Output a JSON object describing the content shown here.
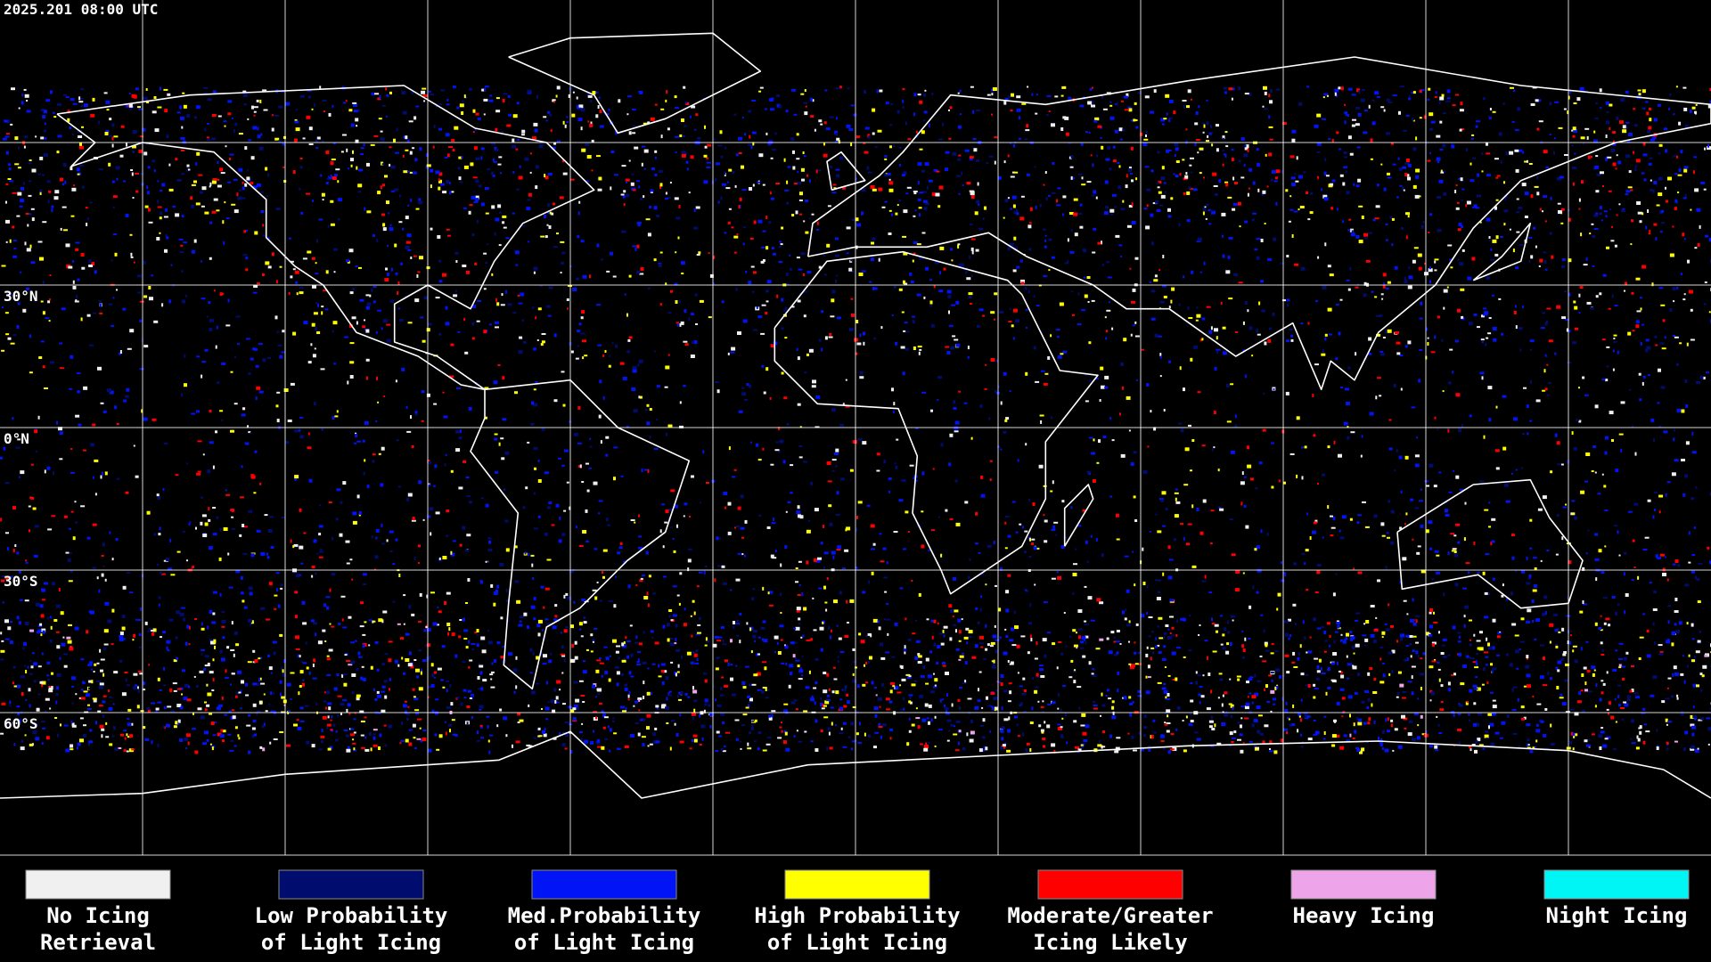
{
  "header": {
    "timestamp": "2025.201 08:00 UTC"
  },
  "latitude_labels": [
    "30°N",
    "0°N",
    "30°S",
    "60°S"
  ],
  "legend": [
    {
      "line1": "No Icing",
      "line2": "Retrieval",
      "color": "#f0f0f0"
    },
    {
      "line1": "Low Probability",
      "line2": "of Light Icing",
      "color": "#000c6e"
    },
    {
      "line1": "Med.Probability",
      "line2": "of Light Icing",
      "color": "#0014f5"
    },
    {
      "line1": "High Probability",
      "line2": "of Light Icing",
      "color": "#ffff00"
    },
    {
      "line1": "Moderate/Greater",
      "line2": "Icing Likely",
      "color": "#ff0000"
    },
    {
      "line1": "Heavy Icing",
      "line2": "",
      "color": "#eea4e8"
    },
    {
      "line1": "Night Icing",
      "line2": "",
      "color": "#00f5f5"
    }
  ]
}
